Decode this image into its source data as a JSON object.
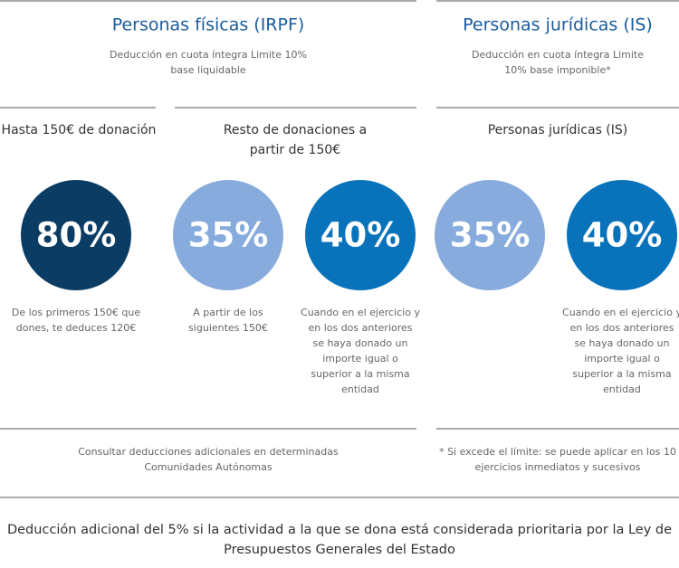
{
  "sections": [
    {
      "title": "Personas físicas (IRPF)",
      "subtitle": [
        "Deducción en cuota íntegra Limite 10%",
        "base liquidable"
      ],
      "note": [
        "Consultar deducciones adicionales en determinadas",
        "Comunidades Autónomas"
      ]
    },
    {
      "title": "Personas jurídicas (IS)",
      "subtitle": [
        "Deducción en cuota íntegra Limite",
        "10% base imponible*"
      ],
      "note": [
        "* Si excede el límite: se puede aplicar en los 10",
        "ejercicios inmediatos y sucesivos"
      ]
    }
  ],
  "groups": [
    {
      "heading": [
        "Hasta 150€ de donación"
      ]
    },
    {
      "heading": [
        "Resto de donaciones a",
        "partir de 150€"
      ]
    },
    {
      "heading": [
        "Personas jurídicas (IS)"
      ]
    }
  ],
  "rates": [
    {
      "value": "80%",
      "color": "#0b3c63",
      "description": [
        "De los primeros 150€ que",
        "dones, te deduces 120€"
      ]
    },
    {
      "value": "35%",
      "color": "#87abdc",
      "description": [
        "A partir de los",
        "siguientes 150€"
      ]
    },
    {
      "value": "40%",
      "color": "#0873ba",
      "description": [
        "Cuando en el ejercicio y",
        "en los dos anteriores",
        "se haya donado un",
        "importe igual o",
        "superior a la misma",
        "entidad"
      ]
    },
    {
      "value": "35%",
      "color": "#87abdc"
    },
    {
      "value": "40%",
      "color": "#0873ba",
      "description": [
        "Cuando en el ejercicio y",
        "en los dos anteriores",
        "se haya donado un",
        "importe igual o",
        "superior a la misma",
        "entidad"
      ]
    }
  ],
  "footer": [
    "Deducción adicional del 5% si la actividad a la que se dona está considerada prioritaria por la Ley de",
    "Presupuestos Generales del Estado"
  ]
}
